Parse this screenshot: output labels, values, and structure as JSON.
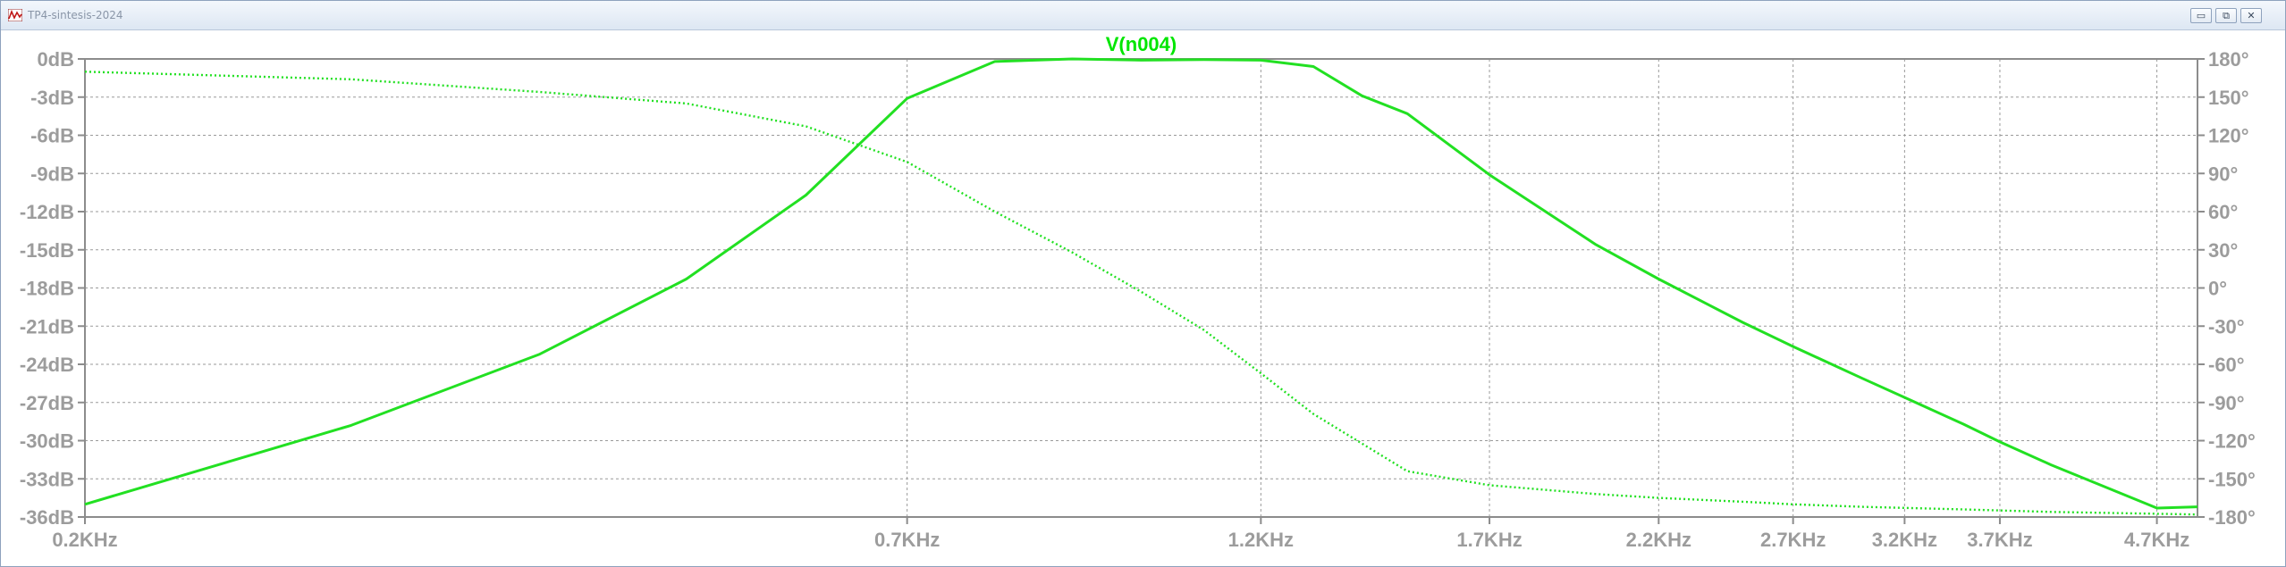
{
  "window": {
    "title": "TP4-sintesis-2024",
    "buttons": {
      "minimize": "▭",
      "restore": "⧉",
      "close": "✕"
    }
  },
  "colors": {
    "trace": "#22e022",
    "grid": "#9a9a9a",
    "axis": "#8c8c8c",
    "label": "#9c9c9c"
  },
  "chart_data": {
    "type": "line",
    "title": "V(n004)",
    "xscale": "log",
    "xlim": [
      200,
      5000
    ],
    "x_ticks": [
      {
        "value": 200,
        "label": "0.2KHz"
      },
      {
        "value": 700,
        "label": "0.7KHz"
      },
      {
        "value": 1200,
        "label": "1.2KHz"
      },
      {
        "value": 1700,
        "label": "1.7KHz"
      },
      {
        "value": 2200,
        "label": "2.2KHz"
      },
      {
        "value": 2700,
        "label": "2.7KHz"
      },
      {
        "value": 3200,
        "label": "3.2KHz"
      },
      {
        "value": 3700,
        "label": "3.7KHz"
      },
      {
        "value": 4700,
        "label": "4.7KHz"
      }
    ],
    "ylim_left": [
      -36,
      0
    ],
    "y_ticks_left": [
      "0dB",
      "-3dB",
      "-6dB",
      "-9dB",
      "-12dB",
      "-15dB",
      "-18dB",
      "-21dB",
      "-24dB",
      "-27dB",
      "-30dB",
      "-33dB",
      "-36dB"
    ],
    "ylim_right": [
      -180,
      180
    ],
    "y_ticks_right": [
      "180°",
      "150°",
      "120°",
      "90°",
      "60°",
      "30°",
      "0°",
      "-30°",
      "-60°",
      "-90°",
      "-120°",
      "-150°",
      "-180°"
    ],
    "grid": true,
    "series": [
      {
        "kind": "magnitude",
        "axis": "left",
        "style": "solid",
        "x": [
          200,
          300,
          400,
          500,
          600,
          700,
          800,
          900,
          1000,
          1100,
          1200,
          1300,
          1400,
          1500,
          1700,
          2000,
          2200,
          2500,
          2700,
          3000,
          3200,
          3500,
          3700,
          4000,
          4700,
          5000
        ],
        "y": [
          -35,
          -28.8,
          -23.2,
          -17.3,
          -10.7,
          -3.1,
          -0.2,
          0,
          -0.1,
          -0.05,
          -0.1,
          -0.6,
          -2.9,
          -4.3,
          -9.1,
          -14.6,
          -17.3,
          -20.7,
          -22.6,
          -25.1,
          -26.6,
          -28.7,
          -30.1,
          -31.9,
          -35.3,
          -35.2
        ]
      },
      {
        "kind": "phase",
        "axis": "right",
        "style": "dotted",
        "x": [
          200,
          300,
          400,
          500,
          600,
          700,
          800,
          900,
          1000,
          1100,
          1200,
          1300,
          1500,
          1700,
          2000,
          2200,
          2500,
          2700,
          3000,
          3500,
          4000,
          5000
        ],
        "y": [
          170,
          164,
          154,
          145,
          127,
          99,
          60,
          28,
          -3,
          -33,
          -67,
          -99,
          -144,
          -155,
          -162,
          -165,
          -168,
          -170,
          -172,
          -174,
          -176,
          -178
        ]
      }
    ]
  }
}
